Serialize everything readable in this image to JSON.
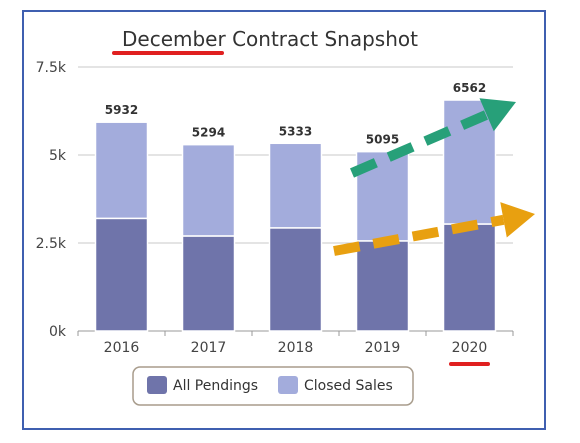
{
  "chart_data": {
    "type": "bar",
    "title_lead": "December",
    "title_rest": " Contract Snapshot",
    "categories": [
      "2016",
      "2017",
      "2018",
      "2019",
      "2020"
    ],
    "series": [
      {
        "name": "All Pendings",
        "values": [
          3200,
          2700,
          2930,
          2560,
          3040
        ],
        "color": "#6f74aa"
      },
      {
        "name": "Closed Sales",
        "values": [
          2732,
          2594,
          2403,
          2535,
          3522
        ],
        "color": "#a3acdc"
      }
    ],
    "totals": [
      "5932",
      "5294",
      "5333",
      "5095",
      "6562"
    ],
    "y_ticks": [
      "0k",
      "2.5k",
      "5k",
      "7.5k"
    ],
    "ylim": [
      0,
      7500
    ],
    "grid": true,
    "legend_position": "bottom",
    "annotations": {
      "underline_color": "#e02020",
      "green_arrow_color": "#27a079",
      "orange_arrow_color": "#e8a010",
      "frame_color": "#3f5fb0"
    }
  }
}
